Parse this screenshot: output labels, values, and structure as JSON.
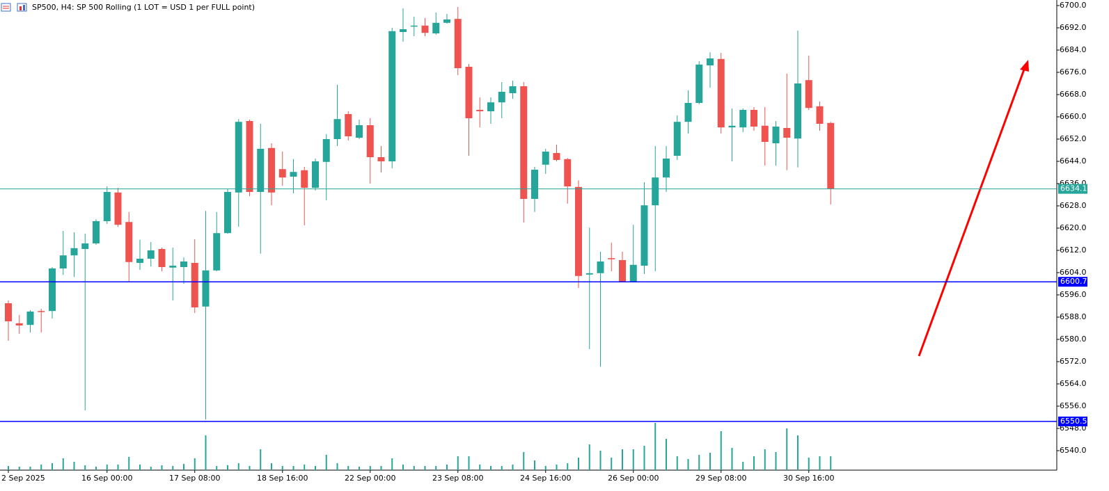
{
  "chart_data": {
    "type": "candlestick",
    "title": "SP500, H4:  SP 500 Rolling (1 LOT = USD 1 per FULL point)",
    "up_color": "#26a69a",
    "down_color": "#ef5350",
    "categories": [
      "2 Sep 2025",
      null,
      null,
      null,
      null,
      null,
      null,
      null,
      null,
      "16 Sep 00:00",
      null,
      null,
      null,
      null,
      null,
      null,
      null,
      "17 Sep 08:00",
      null,
      null,
      null,
      null,
      null,
      null,
      null,
      "18 Sep 16:00",
      null,
      null,
      null,
      null,
      null,
      null,
      null,
      "22 Sep 00:00",
      null,
      null,
      null,
      null,
      null,
      null,
      null,
      "23 Sep 08:00",
      null,
      null,
      null,
      null,
      null,
      null,
      null,
      "24 Sep 16:00",
      null,
      null,
      null,
      null,
      null,
      null,
      null,
      "26 Sep 00:00",
      null,
      null,
      null,
      null,
      null,
      null,
      null,
      "29 Sep 08:00",
      null,
      null,
      null,
      null,
      null,
      null,
      null,
      "30 Sep 16:00",
      null,
      null
    ],
    "open": [
      6593,
      6585.8,
      6585.2,
      6590.2,
      6590.2,
      6605.5,
      6610.2,
      6612.5,
      6614.5,
      6622.5,
      6632.8,
      6622.2,
      6607.5,
      6609,
      6612.5,
      6605.8,
      6606,
      6607.5,
      6591.8,
      6604.8,
      6618.2,
      6632.8,
      6658.5,
      6633,
      6648.8,
      6641.2,
      6638.5,
      6640.8,
      6634.5,
      6643.8,
      6652,
      6661,
      6652.5,
      6657,
      6645.5,
      6644,
      6690.5,
      6692.5,
      6692.8,
      6690,
      6693.8,
      6695.2,
      6678,
      6662.5,
      6662,
      6665.2,
      6668.5,
      6671,
      6630.5,
      6642.8,
      6647,
      6644.8,
      6634.8,
      6603.3,
      6603.8,
      6609.2,
      6608.5,
      6600.5,
      6606.5,
      6628.2,
      6638.2,
      6646,
      6658.2,
      6665,
      6678.5,
      6680.8,
      6656.2,
      6656.2,
      6662.5,
      6656.8,
      6650.5,
      6656,
      6652.2,
      6673.2,
      6663.8,
      6657.8
    ],
    "high": [
      6594,
      6588.8,
      6590.5,
      6591,
      6606,
      6619,
      6618.5,
      6618,
      6623.2,
      6635,
      6634.5,
      6625.8,
      6615.8,
      6615,
      6613,
      6613,
      6609.5,
      6616,
      6626.2,
      6625.8,
      6634,
      6659.2,
      6659,
      6657.5,
      6650.5,
      6647.5,
      6644.8,
      6642,
      6645,
      6653.8,
      6671.5,
      6662,
      6659,
      6659.5,
      6649.5,
      6692,
      6699,
      6696,
      6695.5,
      6697.5,
      6697,
      6699.5,
      6679,
      6667,
      6667,
      6672.5,
      6673,
      6672.5,
      6642,
      6648.5,
      6650,
      6645.2,
      6637.2,
      6620.2,
      6611.5,
      6614.8,
      6611.5,
      6621.2,
      6636.5,
      6649.5,
      6649.5,
      6660.5,
      6669.5,
      6680,
      6683.2,
      6683,
      6663,
      6663,
      6663.5,
      6663.5,
      6658.5,
      6675.5,
      6691,
      6682,
      6665.5,
      6658.2
    ],
    "low": [
      6579.5,
      6582,
      6582.5,
      6582.5,
      6587.5,
      6603.2,
      6602.5,
      6554.5,
      6614,
      6621.5,
      6620.5,
      6600.5,
      6605,
      6606.2,
      6604.5,
      6594,
      6600,
      6589.5,
      6551.2,
      6604.5,
      6618,
      6620.5,
      6631.5,
      6610.8,
      6628.2,
      6635.2,
      6632.5,
      6621,
      6633.5,
      6630,
      6649.5,
      6651.5,
      6652,
      6636,
      6640,
      6641.5,
      6687,
      6689,
      6689,
      6689.5,
      6693.5,
      6675,
      6646,
      6656.2,
      6657.5,
      6659.5,
      6666.5,
      6622,
      6625.8,
      6639.5,
      6644,
      6628.8,
      6598.5,
      6576.5,
      6570.2,
      6604.5,
      6600.5,
      6600.5,
      6603.5,
      6604.5,
      6633,
      6644.5,
      6654,
      6664.5,
      6670.5,
      6654,
      6644,
      6654.5,
      6655,
      6642.5,
      6642.5,
      6640.8,
      6641.8,
      6662.5,
      6655,
      6628.5
    ],
    "close": [
      6586.5,
      6585,
      6590,
      6590,
      6605.5,
      6610.2,
      6612.8,
      6614.5,
      6622.5,
      6633,
      6621.2,
      6607.8,
      6609,
      6612,
      6606,
      6606.5,
      6608,
      6591.5,
      6604.8,
      6618.2,
      6633,
      6658.2,
      6633,
      6648.5,
      6632.8,
      6638.2,
      6640.2,
      6634.5,
      6644,
      6652,
      6659.2,
      6653,
      6657,
      6645.5,
      6644,
      6690.8,
      6691.5,
      6692.8,
      6690.2,
      6693.8,
      6695,
      6677.5,
      6659.5,
      6662,
      6665.2,
      6669,
      6671,
      6630.5,
      6641,
      6647.5,
      6644.5,
      6635,
      6602.8,
      6603.8,
      6608,
      6608.8,
      6600.5,
      6606.8,
      6628.2,
      6638.2,
      6645,
      6658.2,
      6665,
      6678.8,
      6681,
      6656.2,
      6656.8,
      6662.5,
      6656.5,
      6651,
      6656.5,
      6652.5,
      6672,
      6663.2,
      6657.5,
      6634.2
    ],
    "volume": [
      6,
      5,
      5,
      8,
      10,
      17,
      12,
      7,
      5,
      8,
      8,
      19,
      8,
      5,
      7,
      6,
      9,
      17,
      50,
      6,
      7,
      10,
      6,
      30,
      10,
      6,
      6,
      8,
      6,
      22,
      10,
      6,
      5,
      6,
      6,
      17,
      8,
      6,
      6,
      6,
      8,
      20,
      20,
      8,
      6,
      6,
      8,
      26,
      14,
      6,
      8,
      10,
      18,
      37,
      28,
      18,
      30,
      30,
      35,
      68,
      45,
      20,
      16,
      22,
      25,
      56,
      32,
      12,
      20,
      30,
      26,
      60,
      50,
      18,
      20,
      20
    ],
    "volume_color": "#26a69a",
    "ylim": [
      6533,
      6702
    ],
    "yticks": [
      {
        "value": 6700,
        "label": "6700.0"
      },
      {
        "value": 6692,
        "label": "6692.0"
      },
      {
        "value": 6684,
        "label": "6684.0"
      },
      {
        "value": 6676,
        "label": "6676.0"
      },
      {
        "value": 6668,
        "label": "6668.0"
      },
      {
        "value": 6660,
        "label": "6660.0"
      },
      {
        "value": 6652,
        "label": "6652.0"
      },
      {
        "value": 6644,
        "label": "6644.0"
      },
      {
        "value": 6636,
        "label": "6636.0"
      },
      {
        "value": 6628,
        "label": "6628.0"
      },
      {
        "value": 6620,
        "label": "6620.0"
      },
      {
        "value": 6612,
        "label": "6612.0"
      },
      {
        "value": 6604,
        "label": "6604.0"
      },
      {
        "value": 6596,
        "label": "6596.0"
      },
      {
        "value": 6588,
        "label": "6588.0"
      },
      {
        "value": 6580,
        "label": "6580.0"
      },
      {
        "value": 6572,
        "label": "6572.0"
      },
      {
        "value": 6564,
        "label": "6564.0"
      },
      {
        "value": 6556,
        "label": "6556.0"
      },
      {
        "value": 6548,
        "label": "6548.0"
      },
      {
        "value": 6540,
        "label": "6540.0"
      }
    ],
    "hlines": [
      {
        "value": 6634.1,
        "color": "#26a69a"
      },
      {
        "value": 6600.7,
        "color": "#0000ff"
      },
      {
        "value": 6550.5,
        "color": "#0000ff"
      }
    ]
  }
}
